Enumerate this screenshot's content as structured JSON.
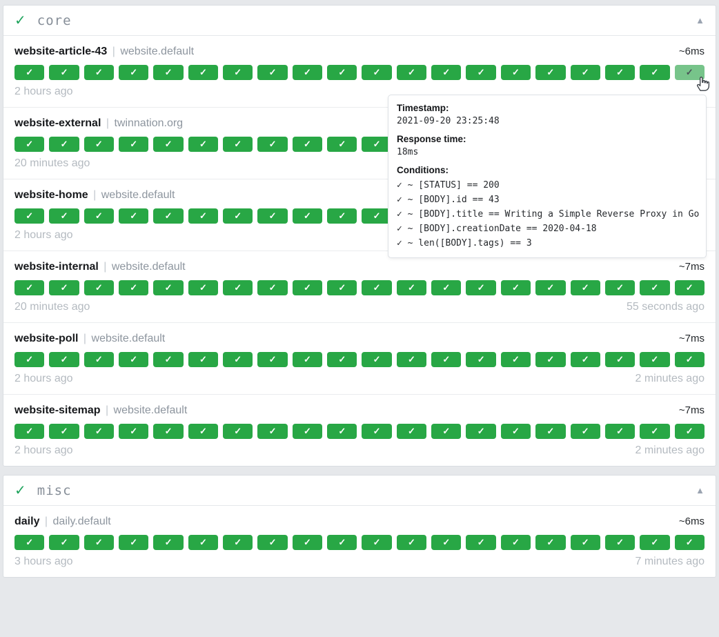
{
  "ui": {
    "check_glyph": "✓",
    "separator": "|",
    "collapse_glyph": "▲"
  },
  "colors": {
    "success_badge": "#28a745",
    "success_badge_hover": "#77c48a",
    "group_check": "#1ea35c",
    "page_background": "#e6e8eb"
  },
  "groups": [
    {
      "title": "core",
      "status": "success",
      "endpoints": [
        {
          "name": "website-article-43",
          "group": "website.default",
          "response_time": "~6ms",
          "oldest_result": "2 hours ago",
          "newest_result": "",
          "history": {
            "count": 20,
            "status": "success",
            "hovered_last": true
          }
        },
        {
          "name": "website-external",
          "group": "twinnation.org",
          "response_time": "",
          "oldest_result": "20 minutes ago",
          "newest_result": "",
          "history": {
            "count": 20,
            "status": "success",
            "hovered_last": false
          }
        },
        {
          "name": "website-home",
          "group": "website.default",
          "response_time": "",
          "oldest_result": "2 hours ago",
          "newest_result": "",
          "history": {
            "count": 20,
            "status": "success",
            "hovered_last": false
          }
        },
        {
          "name": "website-internal",
          "group": "website.default",
          "response_time": "~7ms",
          "oldest_result": "20 minutes ago",
          "newest_result": "55 seconds ago",
          "history": {
            "count": 20,
            "status": "success",
            "hovered_last": false
          }
        },
        {
          "name": "website-poll",
          "group": "website.default",
          "response_time": "~7ms",
          "oldest_result": "2 hours ago",
          "newest_result": "2 minutes ago",
          "history": {
            "count": 20,
            "status": "success",
            "hovered_last": false
          }
        },
        {
          "name": "website-sitemap",
          "group": "website.default",
          "response_time": "~7ms",
          "oldest_result": "2 hours ago",
          "newest_result": "2 minutes ago",
          "history": {
            "count": 20,
            "status": "success",
            "hovered_last": false
          }
        }
      ]
    },
    {
      "title": "misc",
      "status": "success",
      "endpoints": [
        {
          "name": "daily",
          "group": "daily.default",
          "response_time": "~6ms",
          "oldest_result": "3 hours ago",
          "newest_result": "7 minutes ago",
          "history": {
            "count": 20,
            "status": "success",
            "hovered_last": false
          }
        }
      ]
    }
  ],
  "tooltip": {
    "timestamp_label": "Timestamp:",
    "timestamp": "2021-09-20 23:25:48",
    "response_time_label": "Response time:",
    "response_time": "18ms",
    "conditions_label": "Conditions:",
    "conditions": [
      "✓ ~ [STATUS] == 200",
      "✓ ~ [BODY].id == 43",
      "✓ ~ [BODY].title == Writing a Simple Reverse Proxy in Go",
      "✓ ~ [BODY].creationDate == 2020-04-18",
      "✓ ~ len([BODY].tags) == 3"
    ]
  }
}
